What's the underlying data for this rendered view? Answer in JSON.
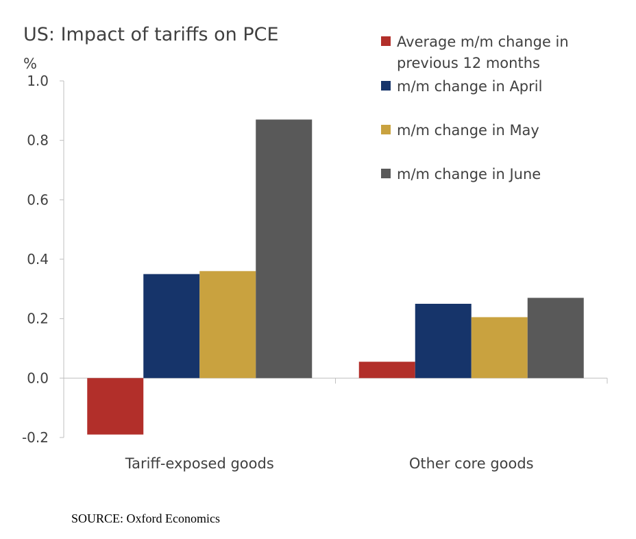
{
  "chart_data": {
    "type": "bar",
    "title": "US: Impact of tariffs on PCE",
    "ylabel": "%",
    "xlabel": "",
    "ylim": [
      -0.2,
      1.0
    ],
    "yticks": [
      "1.0",
      "0.8",
      "0.6",
      "0.4",
      "0.2",
      "0.0",
      "-0.2"
    ],
    "ytick_values": [
      1.0,
      0.8,
      0.6,
      0.4,
      0.2,
      0.0,
      -0.2
    ],
    "categories": [
      "Tariff-exposed goods",
      "Other core goods"
    ],
    "series": [
      {
        "name": "Average m/m change in previous 12 months",
        "name_lines": [
          "Average m/m change in",
          "previous 12 months"
        ],
        "color": "#b22f2a",
        "values": [
          -0.19,
          0.055
        ]
      },
      {
        "name": "m/m change in April",
        "name_lines": [
          "m/m change in April"
        ],
        "color": "#16346a",
        "values": [
          0.35,
          0.25
        ]
      },
      {
        "name": "m/m change in May",
        "name_lines": [
          "m/m change in May"
        ],
        "color": "#c9a23f",
        "values": [
          0.36,
          0.205
        ]
      },
      {
        "name": "m/m change in June",
        "name_lines": [
          "m/m change in June"
        ],
        "color": "#595959",
        "values": [
          0.87,
          0.27
        ]
      }
    ],
    "grid": false,
    "legend": "top-right"
  },
  "source": "SOURCE: Oxford Economics"
}
